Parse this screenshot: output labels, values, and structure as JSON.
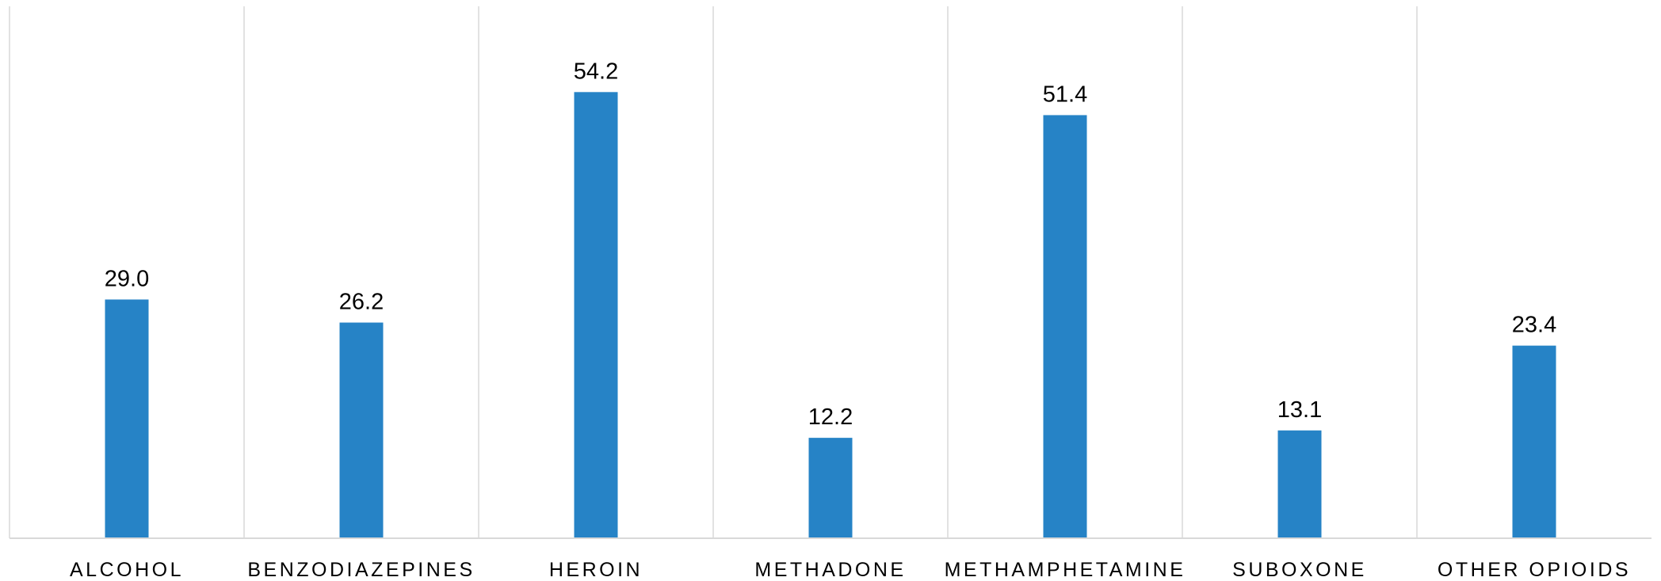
{
  "chart_data": {
    "type": "bar",
    "title": "",
    "xlabel": "",
    "ylabel": "",
    "categories": [
      "ALCOHOL",
      "BENZODIAZEPINES",
      "HEROIN",
      "METHADONE",
      "METHAMPHETAMINE",
      "SUBOXONE",
      "OTHER OPIOIDS"
    ],
    "values": [
      29.0,
      26.2,
      54.2,
      12.2,
      51.4,
      13.1,
      23.4
    ],
    "value_labels": [
      "29.0",
      "26.2",
      "54.2",
      "12.2",
      "51.4",
      "13.1",
      "23.4"
    ],
    "ylim": [
      0,
      60
    ],
    "grid": "vertical category separators",
    "legend": "none",
    "bar_color": "#2683c6",
    "grid_color": "#d9d9d9"
  }
}
